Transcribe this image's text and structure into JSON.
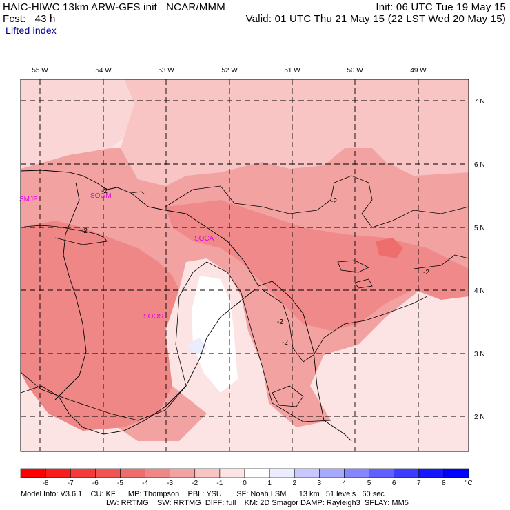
{
  "header": {
    "title": "HAIC-HIWC 13km ARW-GFS init   NCAR/MMM",
    "forecast": "Fcst:   43 h",
    "init": "Init: 06 UTC Tue 19 May 15",
    "valid": "Valid: 01 UTC Thu 21 May 15 (22 LST Wed 20 May 15)",
    "field": "Lifted index"
  },
  "map": {
    "lon_labels": [
      "55 W",
      "54 W",
      "53 W",
      "52 W",
      "51 W",
      "50 W",
      "49 W"
    ],
    "lat_labels": [
      "7 N",
      "6 N",
      "5 N",
      "4 N",
      "3 N",
      "2 N"
    ],
    "stations": [
      "SMJP",
      "SOGM",
      "SOCA",
      "SOOS"
    ],
    "contour_labels": [
      "-2",
      "-2",
      "-2",
      "-2",
      "-2",
      "-2"
    ]
  },
  "colorbar": {
    "ticks": [
      "-8",
      "-7",
      "-6",
      "-5",
      "-4",
      "-3",
      "-2",
      "-1",
      "0",
      "1",
      "2",
      "3",
      "4",
      "5",
      "6",
      "7",
      "8"
    ],
    "unit": "°C",
    "colors": [
      "#ff0000",
      "#f81c1c",
      "#f53a3a",
      "#f25454",
      "#ee6e6e",
      "#ef8787",
      "#f3a2a2",
      "#f8c4c4",
      "#fde4e4",
      "#ffffff",
      "#ececff",
      "#c8c8ff",
      "#a8a8ff",
      "#8585ff",
      "#6060ff",
      "#3c3cff",
      "#1515ff",
      "#0000ff"
    ]
  },
  "footer": {
    "line1": "Model Info: V3.6.1    CU: KF      MP: Thompson    PBL: YSU       SF: Noah LSM      13 km   51 levels   60 sec",
    "line2": "LW: RRTMG    SW: RRTMG  DIFF: full    KM: 2D Smagor DAMP: Rayleigh3  SFLAY: MM5"
  }
}
